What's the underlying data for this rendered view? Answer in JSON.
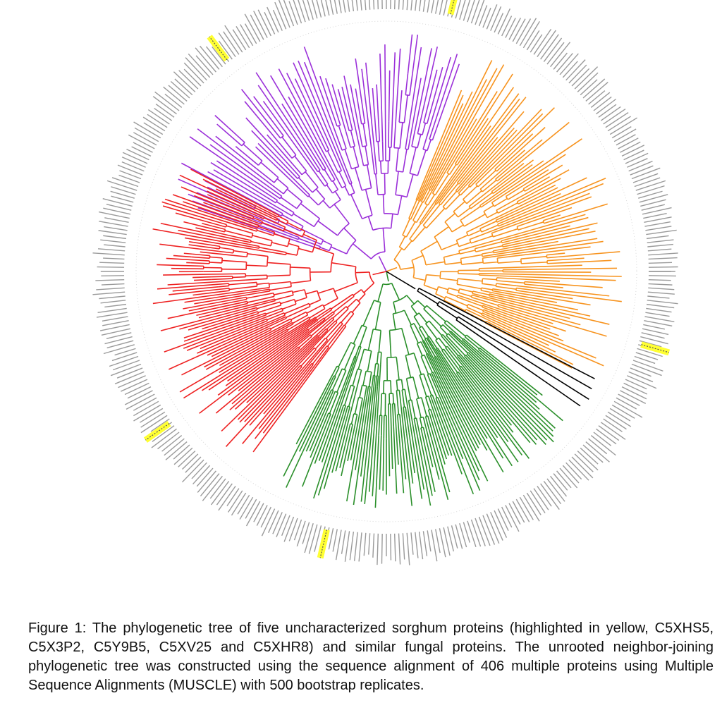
{
  "figure": {
    "caption": "Figure 1: The phylogenetic tree of five uncharacterized sorghum proteins (highlighted in yellow, C5XHS5, C5X3P2, C5Y9B5, C5XV25 and C5XHR8) and similar fungal proteins. The unrooted neighbor-joining phylogenetic tree was constructed using the sequence alignment of 406 multiple proteins using Multiple Sequence Alignments (MUSCLE) with 500 bootstrap replicates."
  },
  "tree": {
    "type": "circular-phylogenetic-tree",
    "total_taxa": 406,
    "clades": [
      {
        "color": "#9b30d9",
        "leaf_count": 70
      },
      {
        "color": "#f7931e",
        "leaf_count": 95
      },
      {
        "color": "#2a8f2a",
        "leaf_count": 90
      },
      {
        "color": "#ee2222",
        "leaf_count": 95
      },
      {
        "color": "#000000",
        "leaf_count": 4
      }
    ],
    "highlight_color": "#ffff33"
  }
}
